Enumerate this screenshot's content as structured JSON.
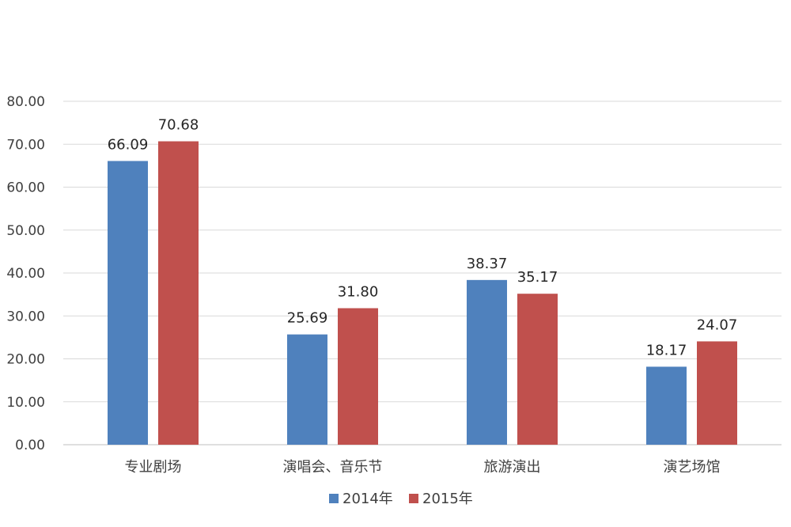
{
  "chart_data": {
    "type": "bar",
    "categories": [
      "专业剧场",
      "演唱会、音乐节",
      "旅游演出",
      "演艺场馆"
    ],
    "series": [
      {
        "name": "2014年",
        "values": [
          66.09,
          25.69,
          38.37,
          18.17
        ],
        "color": "#4F81BD"
      },
      {
        "name": "2015年",
        "values": [
          70.68,
          31.8,
          35.17,
          24.07
        ],
        "color": "#C0504D"
      }
    ],
    "ylim": [
      0,
      80
    ],
    "yticks": [
      "0.00",
      "10.00",
      "20.00",
      "30.00",
      "40.00",
      "50.00",
      "60.00",
      "70.00",
      "80.00"
    ],
    "data_labels": [
      [
        "66.09",
        "25.69",
        "38.37",
        "18.17"
      ],
      [
        "70.68",
        "31.80",
        "35.17",
        "24.07"
      ]
    ],
    "grid": true,
    "legend_position": "bottom",
    "title": "",
    "xlabel": "",
    "ylabel": ""
  }
}
